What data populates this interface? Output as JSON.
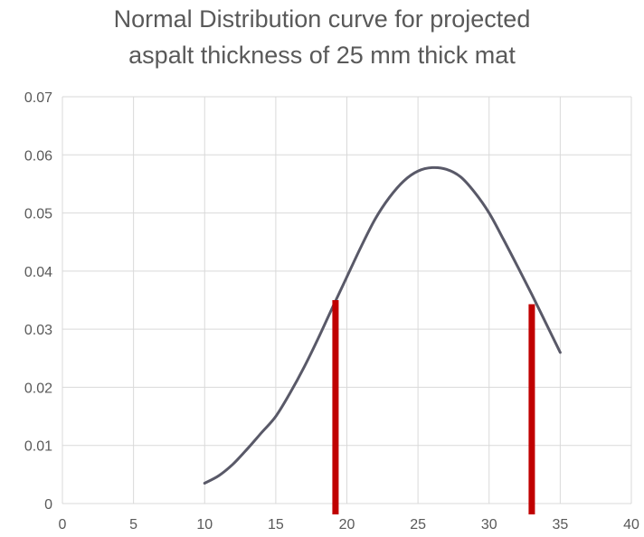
{
  "chart_data": {
    "type": "line",
    "title_lines": [
      "Normal Distribution curve for projected",
      "aspalt thickness of 25 mm thick mat"
    ],
    "xlabel": "",
    "ylabel": "",
    "xlim": [
      0,
      40
    ],
    "ylim": [
      0,
      0.07
    ],
    "x_ticks": [
      "0",
      "5",
      "10",
      "15",
      "20",
      "25",
      "30",
      "35",
      "40"
    ],
    "y_ticks": [
      "0",
      "0.01",
      "0.02",
      "0.03",
      "0.04",
      "0.05",
      "0.06",
      "0.07"
    ],
    "grid": true,
    "legend": "none",
    "series": [
      {
        "color": "#595968",
        "x": [
          10,
          11,
          12,
          13,
          14,
          15,
          16,
          17,
          18,
          19,
          20,
          21,
          22,
          23,
          24,
          25,
          26,
          27,
          28,
          29,
          30,
          31,
          32,
          33,
          34,
          35
        ],
        "y": [
          0.0035,
          0.0048,
          0.0068,
          0.0094,
          0.0122,
          0.015,
          0.019,
          0.0235,
          0.0285,
          0.0338,
          0.039,
          0.0442,
          0.049,
          0.0527,
          0.0555,
          0.0572,
          0.0578,
          0.0575,
          0.0562,
          0.0535,
          0.05,
          0.0455,
          0.0408,
          0.036,
          0.031,
          0.026
        ]
      }
    ],
    "markers": [
      {
        "x": 19.2,
        "y_top": 0.035,
        "color": "#c00000"
      },
      {
        "x": 33.0,
        "y_top": 0.0343,
        "color": "#c00000"
      }
    ]
  }
}
